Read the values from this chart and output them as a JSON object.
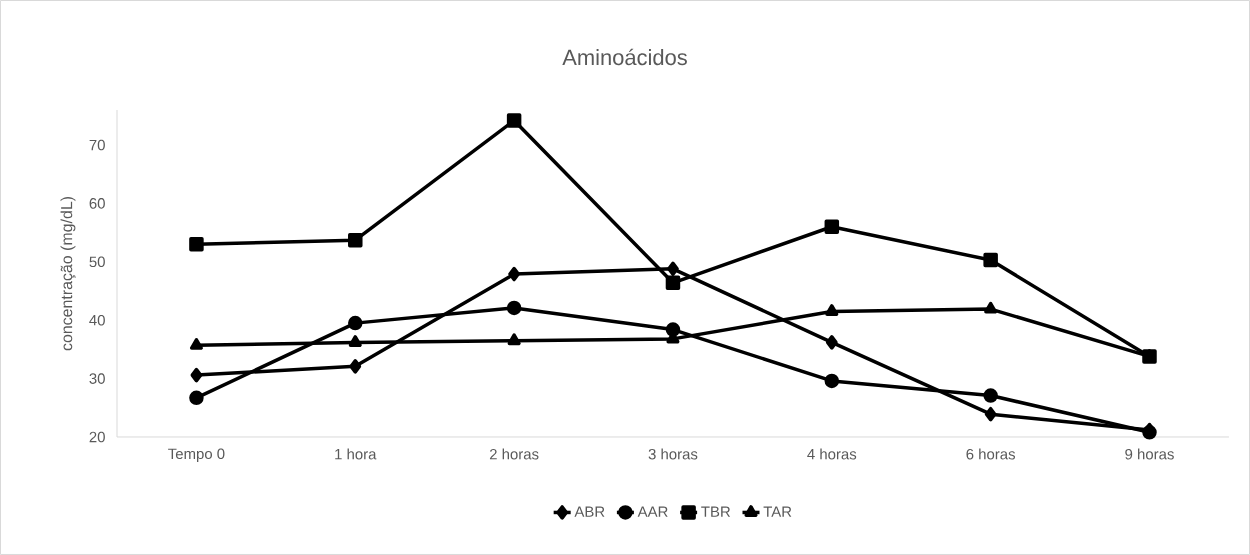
{
  "chart_data": {
    "type": "line",
    "title": "Aminoácidos",
    "ylabel": "concentração (mg/dL)",
    "categories": [
      "Tempo 0",
      "1 hora",
      "2 horas",
      "3 horas",
      "4 horas",
      "6 horas",
      "9 horas"
    ],
    "series": [
      {
        "name": "ABR",
        "color": "#000000",
        "marker": "diamond",
        "values": [
          30.6,
          32.1,
          47.9,
          48.8,
          36.2,
          23.9,
          21.2
        ]
      },
      {
        "name": "AAR",
        "color": "#000000",
        "marker": "circle",
        "values": [
          26.7,
          39.5,
          42.1,
          38.4,
          29.6,
          27.1,
          20.8
        ]
      },
      {
        "name": "TBR",
        "color": "#000000",
        "marker": "square",
        "values": [
          53.0,
          53.7,
          74.2,
          46.4,
          56.0,
          50.3,
          33.8
        ]
      },
      {
        "name": "TAR",
        "color": "#000000",
        "marker": "triangle",
        "values": [
          35.7,
          36.2,
          36.5,
          36.8,
          41.5,
          41.9,
          33.8
        ]
      }
    ],
    "ylim": [
      20,
      76
    ],
    "yticks": [
      20,
      30,
      40,
      50,
      60,
      70
    ],
    "grid": false,
    "legend": "bottom",
    "line_style": "solid"
  }
}
